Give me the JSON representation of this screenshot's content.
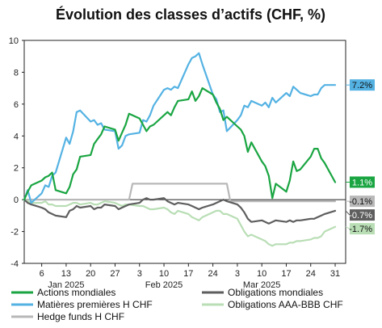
{
  "chart_data": {
    "type": "line",
    "title": "Évolution des classes d’actifs (CHF, %)",
    "xlabel": "",
    "ylabel": "",
    "ylim": [
      -4,
      10
    ],
    "yticks": [
      -4,
      -2,
      0,
      2,
      4,
      6,
      8,
      10
    ],
    "xlim": [
      "2025-01-01",
      "2025-04-03"
    ],
    "xticks": [
      {
        "date": "2025-01-06",
        "label": "6"
      },
      {
        "date": "2025-01-13",
        "label": "13"
      },
      {
        "date": "2025-01-20",
        "label": "20"
      },
      {
        "date": "2025-01-27",
        "label": "27"
      },
      {
        "date": "2025-02-03",
        "label": "3"
      },
      {
        "date": "2025-02-10",
        "label": "10"
      },
      {
        "date": "2025-02-17",
        "label": "17"
      },
      {
        "date": "2025-02-24",
        "label": "24"
      },
      {
        "date": "2025-03-03",
        "label": "3"
      },
      {
        "date": "2025-03-10",
        "label": "10"
      },
      {
        "date": "2025-03-17",
        "label": "17"
      },
      {
        "date": "2025-03-24",
        "label": "24"
      },
      {
        "date": "2025-03-31",
        "label": "31"
      }
    ],
    "month_labels": [
      {
        "date": "2025-01-13",
        "label": "Jan 2025"
      },
      {
        "date": "2025-02-10",
        "label": "Feb 2025"
      },
      {
        "date": "2025-03-10",
        "label": "Mar 2025"
      }
    ],
    "legend_position": "bottom",
    "grid": false,
    "series": [
      {
        "name": "Actions mondiales",
        "color": "#1aa542",
        "end_label": "1.1%",
        "points": [
          [
            "2025-01-01",
            0.0
          ],
          [
            "2025-01-02",
            0.5
          ],
          [
            "2025-01-03",
            0.9
          ],
          [
            "2025-01-06",
            1.2
          ],
          [
            "2025-01-07",
            1.4
          ],
          [
            "2025-01-08",
            1.5
          ],
          [
            "2025-01-09",
            1.7
          ],
          [
            "2025-01-10",
            0.6
          ],
          [
            "2025-01-13",
            0.4
          ],
          [
            "2025-01-14",
            0.8
          ],
          [
            "2025-01-15",
            1.6
          ],
          [
            "2025-01-16",
            1.9
          ],
          [
            "2025-01-17",
            2.7
          ],
          [
            "2025-01-20",
            2.8
          ],
          [
            "2025-01-21",
            3.5
          ],
          [
            "2025-01-22",
            3.8
          ],
          [
            "2025-01-23",
            4.1
          ],
          [
            "2025-01-24",
            4.6
          ],
          [
            "2025-01-27",
            4.4
          ],
          [
            "2025-01-28",
            3.7
          ],
          [
            "2025-01-29",
            4.2
          ],
          [
            "2025-01-30",
            4.7
          ],
          [
            "2025-01-31",
            5.4
          ],
          [
            "2025-02-03",
            5.1
          ],
          [
            "2025-02-04",
            4.7
          ],
          [
            "2025-02-05",
            4.3
          ],
          [
            "2025-02-06",
            4.6
          ],
          [
            "2025-02-07",
            4.7
          ],
          [
            "2025-02-10",
            5.3
          ],
          [
            "2025-02-11",
            5.5
          ],
          [
            "2025-02-12",
            5.3
          ],
          [
            "2025-02-13",
            5.8
          ],
          [
            "2025-02-14",
            6.2
          ],
          [
            "2025-02-17",
            6.3
          ],
          [
            "2025-02-18",
            6.8
          ],
          [
            "2025-02-19",
            6.2
          ],
          [
            "2025-02-20",
            6.5
          ],
          [
            "2025-02-21",
            7.0
          ],
          [
            "2025-02-24",
            6.6
          ],
          [
            "2025-02-25",
            6.1
          ],
          [
            "2025-02-26",
            5.7
          ],
          [
            "2025-02-27",
            5.0
          ],
          [
            "2025-02-28",
            5.2
          ],
          [
            "2025-03-03",
            4.6
          ],
          [
            "2025-03-04",
            4.4
          ],
          [
            "2025-03-05",
            4.0
          ],
          [
            "2025-03-06",
            3.0
          ],
          [
            "2025-03-07",
            3.6
          ],
          [
            "2025-03-10",
            2.4
          ],
          [
            "2025-03-11",
            2.1
          ],
          [
            "2025-03-12",
            1.5
          ],
          [
            "2025-03-13",
            0.1
          ],
          [
            "2025-03-14",
            1.0
          ],
          [
            "2025-03-17",
            0.5
          ],
          [
            "2025-03-18",
            1.2
          ],
          [
            "2025-03-19",
            2.4
          ],
          [
            "2025-03-20",
            1.8
          ],
          [
            "2025-03-21",
            1.9
          ],
          [
            "2025-03-24",
            2.7
          ],
          [
            "2025-03-25",
            3.2
          ],
          [
            "2025-03-26",
            3.2
          ],
          [
            "2025-03-27",
            2.6
          ],
          [
            "2025-03-28",
            2.3
          ],
          [
            "2025-03-31",
            1.1
          ]
        ]
      },
      {
        "name": "Matières premières H CHF",
        "color": "#54b2e3",
        "end_label": "7.2%",
        "points": [
          [
            "2025-01-01",
            0.0
          ],
          [
            "2025-01-02",
            0.6
          ],
          [
            "2025-01-03",
            -0.2
          ],
          [
            "2025-01-06",
            0.4
          ],
          [
            "2025-01-07",
            0.9
          ],
          [
            "2025-01-08",
            0.8
          ],
          [
            "2025-01-09",
            1.5
          ],
          [
            "2025-01-10",
            1.7
          ],
          [
            "2025-01-13",
            3.9
          ],
          [
            "2025-01-14",
            3.5
          ],
          [
            "2025-01-15",
            4.3
          ],
          [
            "2025-01-16",
            5.5
          ],
          [
            "2025-01-17",
            5.6
          ],
          [
            "2025-01-20",
            4.9
          ],
          [
            "2025-01-21",
            5.0
          ],
          [
            "2025-01-22",
            4.7
          ],
          [
            "2025-01-23",
            4.8
          ],
          [
            "2025-01-24",
            4.4
          ],
          [
            "2025-01-27",
            4.3
          ],
          [
            "2025-01-28",
            3.2
          ],
          [
            "2025-01-29",
            3.4
          ],
          [
            "2025-01-30",
            4.0
          ],
          [
            "2025-01-31",
            4.1
          ],
          [
            "2025-02-03",
            4.2
          ],
          [
            "2025-02-04",
            5.0
          ],
          [
            "2025-02-05",
            4.9
          ],
          [
            "2025-02-06",
            5.3
          ],
          [
            "2025-02-07",
            5.9
          ],
          [
            "2025-02-10",
            6.9
          ],
          [
            "2025-02-11",
            7.0
          ],
          [
            "2025-02-12",
            6.9
          ],
          [
            "2025-02-13",
            7.1
          ],
          [
            "2025-02-14",
            7.0
          ],
          [
            "2025-02-17",
            8.5
          ],
          [
            "2025-02-18",
            8.9
          ],
          [
            "2025-02-19",
            9.0
          ],
          [
            "2025-02-20",
            9.2
          ],
          [
            "2025-02-21",
            8.5
          ],
          [
            "2025-02-24",
            6.6
          ],
          [
            "2025-02-25",
            6.3
          ],
          [
            "2025-02-26",
            5.5
          ],
          [
            "2025-02-27",
            5.6
          ],
          [
            "2025-02-28",
            4.3
          ],
          [
            "2025-03-03",
            5.0
          ],
          [
            "2025-03-04",
            5.3
          ],
          [
            "2025-03-05",
            5.9
          ],
          [
            "2025-03-06",
            5.8
          ],
          [
            "2025-03-07",
            6.2
          ],
          [
            "2025-03-10",
            5.9
          ],
          [
            "2025-03-11",
            6.1
          ],
          [
            "2025-03-12",
            5.8
          ],
          [
            "2025-03-13",
            6.4
          ],
          [
            "2025-03-14",
            6.1
          ],
          [
            "2025-03-17",
            6.7
          ],
          [
            "2025-03-18",
            6.5
          ],
          [
            "2025-03-19",
            7.1
          ],
          [
            "2025-03-20",
            6.9
          ],
          [
            "2025-03-21",
            6.7
          ],
          [
            "2025-03-24",
            6.5
          ],
          [
            "2025-03-25",
            6.6
          ],
          [
            "2025-03-26",
            6.6
          ],
          [
            "2025-03-27",
            7.0
          ],
          [
            "2025-03-28",
            7.2
          ],
          [
            "2025-03-31",
            7.2
          ]
        ]
      },
      {
        "name": "Hedge funds H CHF",
        "color": "#b8b8b8",
        "end_label": "-0.1%",
        "points": [
          [
            "2025-01-01",
            0.0
          ],
          [
            "2025-01-31",
            0.0
          ],
          [
            "2025-02-01",
            1.0
          ],
          [
            "2025-02-28",
            1.0
          ],
          [
            "2025-03-01",
            -0.1
          ],
          [
            "2025-03-31",
            -0.1
          ]
        ]
      },
      {
        "name": "Obligations mondiales",
        "color": "#5e5e5e",
        "end_label": "-0.7%",
        "points": [
          [
            "2025-01-01",
            0.0
          ],
          [
            "2025-01-02",
            -0.2
          ],
          [
            "2025-01-03",
            -0.3
          ],
          [
            "2025-01-06",
            -0.5
          ],
          [
            "2025-01-07",
            -0.6
          ],
          [
            "2025-01-08",
            -0.8
          ],
          [
            "2025-01-09",
            -0.9
          ],
          [
            "2025-01-10",
            -1.0
          ],
          [
            "2025-01-13",
            -1.1
          ],
          [
            "2025-01-14",
            -0.7
          ],
          [
            "2025-01-15",
            -0.6
          ],
          [
            "2025-01-16",
            -0.4
          ],
          [
            "2025-01-17",
            -0.5
          ],
          [
            "2025-01-20",
            -0.4
          ],
          [
            "2025-01-21",
            -0.6
          ],
          [
            "2025-01-22",
            -0.5
          ],
          [
            "2025-01-23",
            -0.5
          ],
          [
            "2025-01-24",
            -0.3
          ],
          [
            "2025-01-27",
            -0.4
          ],
          [
            "2025-01-28",
            -0.6
          ],
          [
            "2025-01-29",
            -0.5
          ],
          [
            "2025-01-30",
            -0.4
          ],
          [
            "2025-01-31",
            -0.3
          ],
          [
            "2025-02-03",
            -0.2
          ],
          [
            "2025-02-04",
            0.0
          ],
          [
            "2025-02-05",
            0.1
          ],
          [
            "2025-02-06",
            0.0
          ],
          [
            "2025-02-07",
            0.0
          ],
          [
            "2025-02-10",
            0.1
          ],
          [
            "2025-02-11",
            -0.1
          ],
          [
            "2025-02-12",
            -0.2
          ],
          [
            "2025-02-13",
            -0.3
          ],
          [
            "2025-02-14",
            -0.2
          ],
          [
            "2025-02-17",
            -0.3
          ],
          [
            "2025-02-18",
            -0.4
          ],
          [
            "2025-02-19",
            -0.5
          ],
          [
            "2025-02-20",
            -0.6
          ],
          [
            "2025-02-21",
            -0.5
          ],
          [
            "2025-02-24",
            -0.3
          ],
          [
            "2025-02-25",
            -0.2
          ],
          [
            "2025-02-26",
            -0.1
          ],
          [
            "2025-02-27",
            0.0
          ],
          [
            "2025-02-28",
            -0.1
          ],
          [
            "2025-03-03",
            -0.3
          ],
          [
            "2025-03-04",
            -0.5
          ],
          [
            "2025-03-05",
            -0.8
          ],
          [
            "2025-03-06",
            -1.2
          ],
          [
            "2025-03-07",
            -1.4
          ],
          [
            "2025-03-10",
            -1.3
          ],
          [
            "2025-03-11",
            -1.4
          ],
          [
            "2025-03-12",
            -1.5
          ],
          [
            "2025-03-13",
            -1.4
          ],
          [
            "2025-03-14",
            -1.3
          ],
          [
            "2025-03-17",
            -1.4
          ],
          [
            "2025-03-18",
            -1.3
          ],
          [
            "2025-03-19",
            -1.4
          ],
          [
            "2025-03-20",
            -1.3
          ],
          [
            "2025-03-21",
            -1.3
          ],
          [
            "2025-03-24",
            -1.2
          ],
          [
            "2025-03-25",
            -1.2
          ],
          [
            "2025-03-26",
            -1.1
          ],
          [
            "2025-03-27",
            -1.0
          ],
          [
            "2025-03-28",
            -0.9
          ],
          [
            "2025-03-31",
            -0.7
          ]
        ]
      },
      {
        "name": "Obligations AAA-BBB CHF",
        "color": "#b9deb5",
        "end_label": "-1.7%",
        "points": [
          [
            "2025-01-01",
            0.0
          ],
          [
            "2025-01-02",
            -0.1
          ],
          [
            "2025-01-03",
            -0.2
          ],
          [
            "2025-01-06",
            -0.2
          ],
          [
            "2025-01-07",
            -0.1
          ],
          [
            "2025-01-08",
            -0.3
          ],
          [
            "2025-01-09",
            -0.3
          ],
          [
            "2025-01-10",
            -0.4
          ],
          [
            "2025-01-13",
            -0.4
          ],
          [
            "2025-01-14",
            -0.3
          ],
          [
            "2025-01-15",
            -0.2
          ],
          [
            "2025-01-16",
            -0.2
          ],
          [
            "2025-01-17",
            -0.3
          ],
          [
            "2025-01-20",
            -0.2
          ],
          [
            "2025-01-21",
            -0.3
          ],
          [
            "2025-01-22",
            -0.3
          ],
          [
            "2025-01-23",
            -0.2
          ],
          [
            "2025-01-24",
            -0.1
          ],
          [
            "2025-01-27",
            -0.2
          ],
          [
            "2025-01-28",
            -0.3
          ],
          [
            "2025-01-29",
            -0.4
          ],
          [
            "2025-01-30",
            -0.3
          ],
          [
            "2025-01-31",
            -0.3
          ],
          [
            "2025-02-03",
            -0.4
          ],
          [
            "2025-02-04",
            -0.4
          ],
          [
            "2025-02-05",
            -0.5
          ],
          [
            "2025-02-06",
            -0.6
          ],
          [
            "2025-02-07",
            -0.6
          ],
          [
            "2025-02-10",
            -0.5
          ],
          [
            "2025-02-11",
            -0.6
          ],
          [
            "2025-02-12",
            -0.8
          ],
          [
            "2025-02-13",
            -0.9
          ],
          [
            "2025-02-14",
            -0.7
          ],
          [
            "2025-02-17",
            -0.9
          ],
          [
            "2025-02-18",
            -1.1
          ],
          [
            "2025-02-19",
            -1.2
          ],
          [
            "2025-02-20",
            -1.3
          ],
          [
            "2025-02-21",
            -1.1
          ],
          [
            "2025-02-24",
            -0.8
          ],
          [
            "2025-02-25",
            -0.7
          ],
          [
            "2025-02-26",
            -0.7
          ],
          [
            "2025-02-27",
            -0.9
          ],
          [
            "2025-02-28",
            -0.9
          ],
          [
            "2025-03-03",
            -1.2
          ],
          [
            "2025-03-04",
            -1.6
          ],
          [
            "2025-03-05",
            -2.0
          ],
          [
            "2025-03-06",
            -2.3
          ],
          [
            "2025-03-07",
            -2.2
          ],
          [
            "2025-03-10",
            -2.5
          ],
          [
            "2025-03-11",
            -2.6
          ],
          [
            "2025-03-12",
            -2.8
          ],
          [
            "2025-03-13",
            -2.9
          ],
          [
            "2025-03-14",
            -2.8
          ],
          [
            "2025-03-17",
            -2.8
          ],
          [
            "2025-03-18",
            -2.7
          ],
          [
            "2025-03-19",
            -2.7
          ],
          [
            "2025-03-20",
            -2.6
          ],
          [
            "2025-03-21",
            -2.6
          ],
          [
            "2025-03-24",
            -2.5
          ],
          [
            "2025-03-25",
            -2.4
          ],
          [
            "2025-03-26",
            -2.4
          ],
          [
            "2025-03-27",
            -2.3
          ],
          [
            "2025-03-28",
            -2.0
          ],
          [
            "2025-03-31",
            -1.7
          ]
        ]
      }
    ]
  }
}
